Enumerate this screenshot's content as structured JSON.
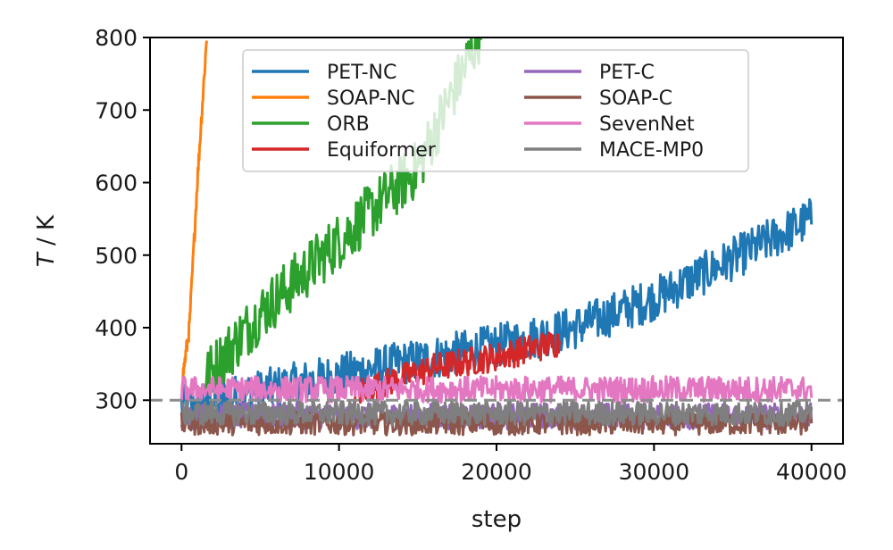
{
  "chart_data": {
    "type": "line",
    "xlabel": "step",
    "ylabel_italic": "T",
    "ylabel_unit": " / K",
    "xlim": [
      -2000,
      42000
    ],
    "ylim": [
      240,
      800
    ],
    "x_ticks": [
      0,
      10000,
      20000,
      30000,
      40000
    ],
    "x_tick_labels": [
      "0",
      "10000",
      "20000",
      "30000",
      "40000"
    ],
    "y_ticks": [
      300,
      400,
      500,
      600,
      700,
      800
    ],
    "y_tick_labels": [
      "300",
      "400",
      "500",
      "600",
      "700",
      "800"
    ],
    "reference_line": {
      "y": 300,
      "style": "dashed",
      "color": "#8c8c8c"
    },
    "legend_position": "top-right",
    "series": [
      {
        "name": "PET-NC",
        "color": "#1f77b4",
        "x_range": [
          0,
          40000
        ],
        "trend": [
          [
            0,
            290
          ],
          [
            10000,
            335
          ],
          [
            20000,
            375
          ],
          [
            25000,
            400
          ],
          [
            30000,
            440
          ],
          [
            40000,
            550
          ]
        ],
        "noise": 30
      },
      {
        "name": "SOAP-NC",
        "color": "#ff7f0e",
        "x_range": [
          0,
          1600
        ],
        "trend": [
          [
            0,
            320
          ],
          [
            500,
            400
          ],
          [
            1000,
            600
          ],
          [
            1600,
            800
          ]
        ],
        "noise": 12
      },
      {
        "name": "ORB",
        "color": "#2ca02c",
        "x_range": [
          1500,
          19000
        ],
        "trend": [
          [
            1500,
            330
          ],
          [
            5000,
            420
          ],
          [
            10000,
            520
          ],
          [
            15000,
            620
          ],
          [
            18000,
            760
          ],
          [
            19000,
            810
          ]
        ],
        "noise": 40
      },
      {
        "name": "Equiformer",
        "color": "#d62728",
        "x_range": [
          11000,
          24000
        ],
        "trend": [
          [
            11000,
            310
          ],
          [
            16000,
            345
          ],
          [
            20000,
            360
          ],
          [
            24000,
            380
          ]
        ],
        "noise": 20
      },
      {
        "name": "PET-C",
        "color": "#9467bd",
        "x_range": [
          0,
          40000
        ],
        "trend": [
          [
            0,
            278
          ],
          [
            40000,
            278
          ]
        ],
        "noise": 18
      },
      {
        "name": "SOAP-C",
        "color": "#8c564b",
        "x_range": [
          0,
          40000
        ],
        "trend": [
          [
            0,
            268
          ],
          [
            40000,
            268
          ]
        ],
        "noise": 16
      },
      {
        "name": "SevenNet",
        "color": "#e377c2",
        "x_range": [
          0,
          40000
        ],
        "trend": [
          [
            0,
            315
          ],
          [
            40000,
            315
          ]
        ],
        "noise": 18
      },
      {
        "name": "MACE-MP0",
        "color": "#7f7f7f",
        "x_range": [
          0,
          40000
        ],
        "trend": [
          [
            0,
            282
          ],
          [
            40000,
            282
          ]
        ],
        "noise": 17
      }
    ]
  }
}
